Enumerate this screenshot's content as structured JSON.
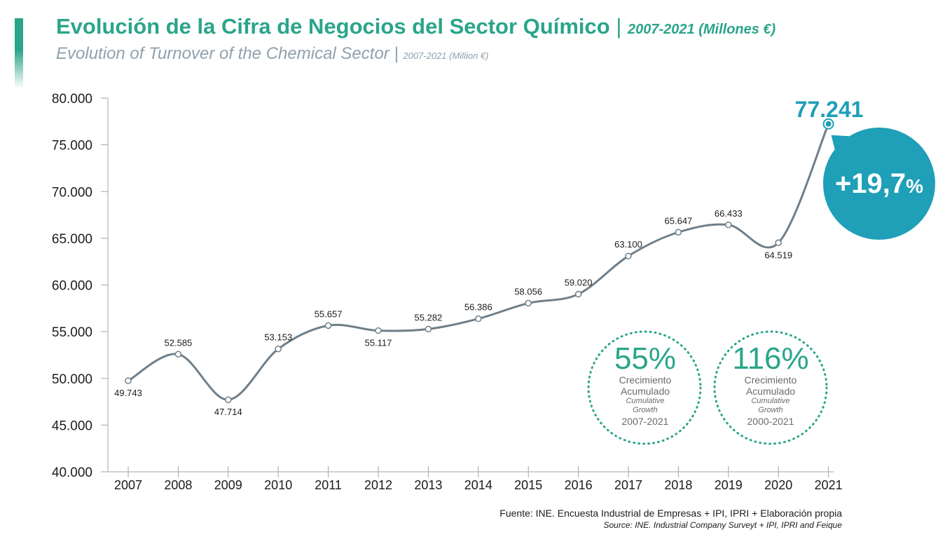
{
  "header": {
    "title_es": "Evolución de la Cifra de Negocios del Sector Químico",
    "separator": "|",
    "subtitle_es": "2007-2021 (Millones €)",
    "title_en": "Evolution of Turnover of the Chemical Sector",
    "subtitle_en": "2007-2021 (Million €)"
  },
  "chart_data": {
    "type": "line",
    "x": [
      "2007",
      "2008",
      "2009",
      "2010",
      "2011",
      "2012",
      "2013",
      "2014",
      "2015",
      "2016",
      "2017",
      "2018",
      "2019",
      "2020",
      "2021"
    ],
    "values": [
      49743,
      52585,
      47714,
      53153,
      55657,
      55117,
      55282,
      56386,
      58056,
      59020,
      63100,
      65647,
      66433,
      64519,
      77241
    ],
    "data_labels": [
      "49.743",
      "52.585",
      "47.714",
      "53.153",
      "55.657",
      "55.117",
      "55.282",
      "56.386",
      "58.056",
      "59.020",
      "63.100",
      "65.647",
      "66.433",
      "64.519",
      "77.241"
    ],
    "ylim": [
      40000,
      80000
    ],
    "yticks": [
      40000,
      45000,
      50000,
      55000,
      60000,
      65000,
      70000,
      75000,
      80000
    ],
    "ytick_labels": [
      "40.000",
      "45.000",
      "50.000",
      "55.000",
      "60.000",
      "65.000",
      "70.000",
      "75.000",
      "80.000"
    ],
    "grid": false,
    "line_color": "#6e7f8a",
    "highlight_color": "#1f9fb8"
  },
  "highlight": {
    "value_label": "77.241",
    "growth_label": "+19,7",
    "growth_suffix": "%"
  },
  "stats": [
    {
      "pct": "55%",
      "label_es_1": "Crecimiento",
      "label_es_2": "Acumulado",
      "label_en_1": "Cumulative",
      "label_en_2": "Growth",
      "years": "2007-2021"
    },
    {
      "pct": "116%",
      "label_es_1": "Crecimiento",
      "label_es_2": "Acumulado",
      "label_en_1": "Cumulative",
      "label_en_2": "Growth",
      "years": "2000-2021"
    }
  ],
  "footer": {
    "source_es": "Fuente: INE. Encuesta Industrial de Empresas + IPI, IPRI + Elaboración propia",
    "source_en": "Source: INE. Industrial Company Surveyt + IPI, IPRI and Feique"
  },
  "colors": {
    "title": "#2aa58a",
    "subtitle": "#8fa1ad",
    "stat_circle": "#2aa58a"
  }
}
